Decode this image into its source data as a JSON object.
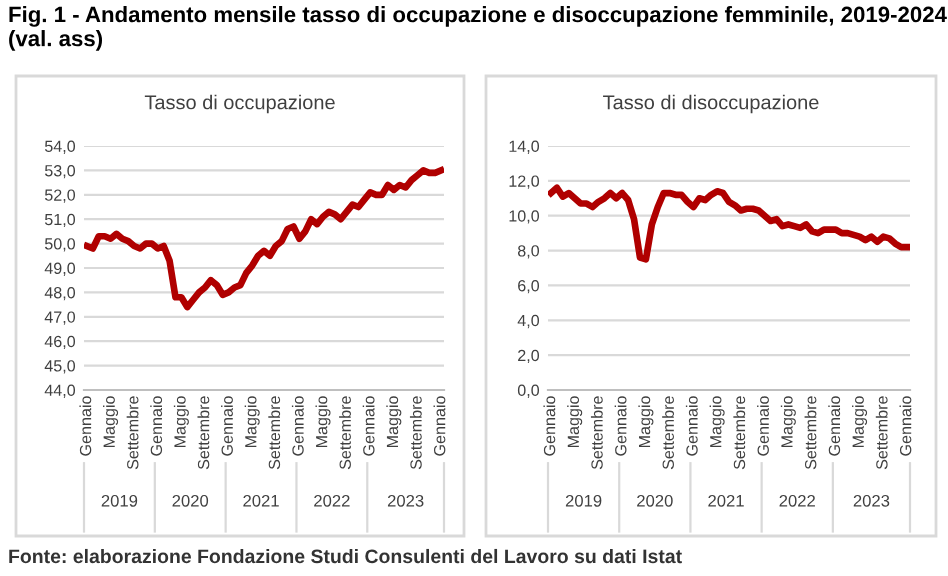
{
  "chart_data": [
    {
      "type": "line",
      "title": "Fig. 1 - Andamento mensile tasso di occupazione e disoccupazione femminile, 2019-2024 (val. ass)",
      "subtitle": "Tasso di occupazione",
      "categories": [
        "Gennaio",
        null,
        null,
        null,
        "Maggio",
        null,
        null,
        null,
        "Settembre",
        null,
        null,
        null,
        "Gennaio",
        null,
        null,
        null,
        "Maggio",
        null,
        null,
        null,
        "Settembre",
        null,
        null,
        null,
        "Gennaio",
        null,
        null,
        null,
        "Maggio",
        null,
        null,
        null,
        "Settembre",
        null,
        null,
        null,
        "Gennaio",
        null,
        null,
        null,
        "Maggio",
        null,
        null,
        null,
        "Settembre",
        null,
        null,
        null,
        "Gennaio",
        null,
        null,
        null,
        "Maggio",
        null,
        null,
        null,
        "Settembre",
        null,
        null,
        null,
        "Gennaio"
      ],
      "series": [
        {
          "color": "#b00000",
          "values": [
            49.9,
            49.8,
            50.3,
            50.3,
            50.2,
            50.4,
            50.2,
            50.1,
            49.9,
            49.8,
            50.0,
            50.0,
            49.8,
            49.9,
            49.3,
            47.8,
            47.8,
            47.4,
            47.7,
            48.0,
            48.2,
            48.5,
            48.3,
            47.9,
            48.0,
            48.2,
            48.3,
            48.8,
            49.1,
            49.5,
            49.7,
            49.5,
            49.9,
            50.1,
            50.6,
            50.7,
            50.2,
            50.5,
            51.0,
            50.8,
            51.1,
            51.3,
            51.2,
            51.0,
            51.3,
            51.6,
            51.5,
            51.8,
            52.1,
            52.0,
            52.0,
            52.4,
            52.2,
            52.4,
            52.3,
            52.6,
            52.8,
            53.0,
            52.9,
            52.9,
            53.0
          ]
        }
      ],
      "ylim": [
        44,
        54
      ],
      "yticks": [
        {
          "value": 44,
          "label": "44,0"
        },
        {
          "value": 45,
          "label": "45,0"
        },
        {
          "value": 46,
          "label": "46,0"
        },
        {
          "value": 47,
          "label": "47,0"
        },
        {
          "value": 48,
          "label": "48,0"
        },
        {
          "value": 49,
          "label": "49,0"
        },
        {
          "value": 50,
          "label": "50,0"
        },
        {
          "value": 51,
          "label": "51,0"
        },
        {
          "value": 52,
          "label": "52,0"
        },
        {
          "value": 53,
          "label": "53,0"
        },
        {
          "value": 54,
          "label": "54,0"
        }
      ],
      "grid": "y",
      "marker": "none",
      "line_style": "solid",
      "legend": false,
      "annotations": [
        "2019",
        "2020",
        "2021",
        "2022",
        "2023",
        "Fonte: elaborazione Fondazione Studi Consulenti del Lavoro su dati Istat"
      ]
    },
    {
      "type": "line",
      "subtitle": "Tasso di disoccupazione",
      "categories": [
        "Gennaio",
        null,
        null,
        null,
        "Maggio",
        null,
        null,
        null,
        "Settembre",
        null,
        null,
        null,
        "Gennaio",
        null,
        null,
        null,
        "Maggio",
        null,
        null,
        null,
        "Settembre",
        null,
        null,
        null,
        "Gennaio",
        null,
        null,
        null,
        "Maggio",
        null,
        null,
        null,
        "Settembre",
        null,
        null,
        null,
        "Gennaio",
        null,
        null,
        null,
        "Maggio",
        null,
        null,
        null,
        "Settembre",
        null,
        null,
        null,
        "Gennaio",
        null,
        null,
        null,
        "Maggio",
        null,
        null,
        null,
        "Settembre",
        null,
        null,
        null,
        "Gennaio"
      ],
      "series": [
        {
          "color": "#b00000",
          "values": [
            11.3,
            11.6,
            11.1,
            11.3,
            11.0,
            10.7,
            10.7,
            10.5,
            10.8,
            11.0,
            11.3,
            11.0,
            11.3,
            10.9,
            9.8,
            7.6,
            7.5,
            9.5,
            10.5,
            11.3,
            11.3,
            11.2,
            11.2,
            10.8,
            10.5,
            11.0,
            10.9,
            11.2,
            11.4,
            11.3,
            10.8,
            10.6,
            10.3,
            10.4,
            10.4,
            10.3,
            10.0,
            9.7,
            9.8,
            9.4,
            9.5,
            9.4,
            9.3,
            9.5,
            9.1,
            9.0,
            9.2,
            9.2,
            9.2,
            9.0,
            9.0,
            8.9,
            8.8,
            8.6,
            8.8,
            8.5,
            8.8,
            8.7,
            8.4,
            8.2,
            8.2
          ]
        }
      ],
      "ylim": [
        0,
        14
      ],
      "yticks": [
        {
          "value": 0,
          "label": "0,0"
        },
        {
          "value": 2,
          "label": "2,0"
        },
        {
          "value": 4,
          "label": "4,0"
        },
        {
          "value": 6,
          "label": "6,0"
        },
        {
          "value": 8,
          "label": "8,0"
        },
        {
          "value": 10,
          "label": "10,0"
        },
        {
          "value": 12,
          "label": "12,0"
        },
        {
          "value": 14,
          "label": "14,0"
        }
      ],
      "grid": "y",
      "marker": "none",
      "line_style": "solid",
      "legend": false,
      "annotations": [
        "2019",
        "2020",
        "2021",
        "2022",
        "2023"
      ]
    }
  ]
}
